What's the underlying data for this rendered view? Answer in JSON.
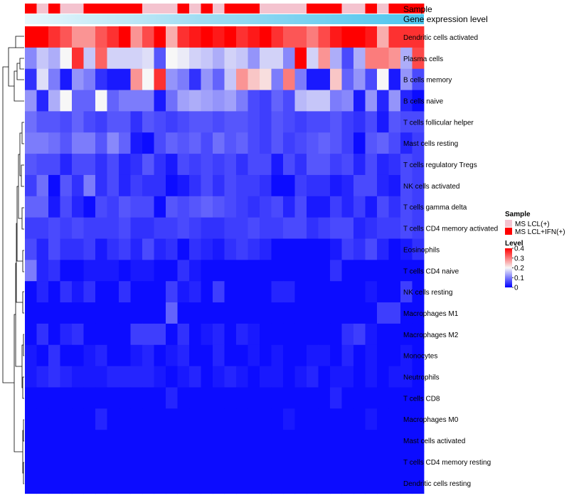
{
  "chart_data": {
    "type": "heatmap",
    "title": "",
    "annotation_labels": [
      "Sample",
      "Gene expression level"
    ],
    "sample_annotation": [
      1,
      0,
      1,
      0,
      0,
      1,
      1,
      1,
      1,
      1,
      0,
      0,
      0,
      1,
      0,
      1,
      0,
      1,
      1,
      1,
      0,
      0,
      0,
      0,
      1,
      1,
      1,
      0,
      0,
      1,
      0,
      1,
      1,
      1
    ],
    "sample_legend": {
      "title": "Sample",
      "entries": [
        {
          "name": "MS LCL(+)",
          "color": "#f4c3cf"
        },
        {
          "name": "MS LCL+IFN(+)",
          "color": "#ff0000"
        }
      ]
    },
    "level_legend": {
      "title": "Level",
      "ticks": [
        "0.4",
        "0.3",
        "0.2",
        "0.1",
        "0"
      ],
      "range": [
        0,
        0.4
      ]
    },
    "color_scale": {
      "low": "#0000ff",
      "mid": "#f7f7f7",
      "high": "#ff0000",
      "min": 0,
      "mid_value": 0.2,
      "max": 0.4
    },
    "rows": [
      "Dendritic cells activated",
      "Plasma cells",
      "B cells memory",
      "B cells naive",
      "T cells follicular helper",
      "Mast cells resting",
      "T cells regulatory  Tregs",
      "NK cells activated",
      "T cells gamma delta",
      "T cells CD4 memory activated",
      "Eosinophils",
      "T cells CD4 naive",
      "NK cells resting",
      "Macrophages M1",
      "Macrophages M2",
      "Monocytes",
      "Neutrophils",
      "T cells CD8",
      "Macrophages M0",
      "Mast cells activated",
      "T cells CD4 memory resting",
      "Dendritic cells resting"
    ],
    "values": [
      [
        0.4,
        0.4,
        0.36,
        0.33,
        0.28,
        0.28,
        0.33,
        0.36,
        0.4,
        0.28,
        0.34,
        0.4,
        0.26,
        0.36,
        0.38,
        0.4,
        0.38,
        0.4,
        0.36,
        0.38,
        0.4,
        0.36,
        0.33,
        0.33,
        0.3,
        0.34,
        0.38,
        0.4,
        0.4,
        0.38,
        0.26,
        0.36,
        0.36,
        0.36
      ],
      [
        0.11,
        0.16,
        0.14,
        0.2,
        0.36,
        0.16,
        0.32,
        0.17,
        0.17,
        0.17,
        0.18,
        0.07,
        0.2,
        0.19,
        0.17,
        0.16,
        0.14,
        0.17,
        0.16,
        0.12,
        0.17,
        0.17,
        0.11,
        0.4,
        0.17,
        0.28,
        0.14,
        0.06,
        0.14,
        0.3,
        0.3,
        0.28,
        0.14,
        0.34
      ],
      [
        0.04,
        0.18,
        0.1,
        0.02,
        0.12,
        0.1,
        0.04,
        0.02,
        0.02,
        0.28,
        0.2,
        0.36,
        0.12,
        0.1,
        0.04,
        0.12,
        0.08,
        0.16,
        0.28,
        0.24,
        0.22,
        0.1,
        0.3,
        0.1,
        0.02,
        0.02,
        0.24,
        0.08,
        0.12,
        0.06,
        0.2,
        0.02,
        0.12,
        0.06
      ],
      [
        0.12,
        0.03,
        0.14,
        0.2,
        0.08,
        0.08,
        0.2,
        0.08,
        0.1,
        0.1,
        0.1,
        0.02,
        0.09,
        0.13,
        0.14,
        0.13,
        0.12,
        0.13,
        0.1,
        0.06,
        0.05,
        0.08,
        0.06,
        0.15,
        0.16,
        0.16,
        0.1,
        0.11,
        0.02,
        0.12,
        0.03,
        0.12,
        0.03,
        0.01
      ],
      [
        0.09,
        0.07,
        0.07,
        0.06,
        0.08,
        0.06,
        0.05,
        0.07,
        0.07,
        0.04,
        0.07,
        0.06,
        0.05,
        0.06,
        0.07,
        0.07,
        0.06,
        0.07,
        0.07,
        0.06,
        0.05,
        0.07,
        0.06,
        0.05,
        0.06,
        0.06,
        0.07,
        0.05,
        0.04,
        0.06,
        0.02,
        0.07,
        0.06,
        0.06
      ],
      [
        0.1,
        0.1,
        0.09,
        0.07,
        0.1,
        0.1,
        0.07,
        0.11,
        0.08,
        0.02,
        0.01,
        0.06,
        0.08,
        0.07,
        0.08,
        0.06,
        0.09,
        0.07,
        0.08,
        0.06,
        0.05,
        0.07,
        0.05,
        0.06,
        0.07,
        0.08,
        0.07,
        0.05,
        0.01,
        0.07,
        0.08,
        0.06,
        0.03,
        0.05
      ],
      [
        0.07,
        0.06,
        0.06,
        0.03,
        0.06,
        0.06,
        0.04,
        0.06,
        0.03,
        0.04,
        0.07,
        0.04,
        0.02,
        0.06,
        0.05,
        0.06,
        0.05,
        0.06,
        0.04,
        0.06,
        0.06,
        0.02,
        0.06,
        0.04,
        0.07,
        0.07,
        0.05,
        0.06,
        0.03,
        0.06,
        0.03,
        0.04,
        0.06,
        0.05
      ],
      [
        0.05,
        0.09,
        0.01,
        0.07,
        0.04,
        0.1,
        0.04,
        0.06,
        0.03,
        0.05,
        0.04,
        0.04,
        0.01,
        0.02,
        0.04,
        0.06,
        0.04,
        0.06,
        0.05,
        0.05,
        0.04,
        0.01,
        0.01,
        0.05,
        0.04,
        0.04,
        0.02,
        0.03,
        0.06,
        0.06,
        0.03,
        0.02,
        0.06,
        0.05
      ],
      [
        0.08,
        0.08,
        0.02,
        0.06,
        0.03,
        0.01,
        0.06,
        0.05,
        0.07,
        0.06,
        0.06,
        0.01,
        0.07,
        0.06,
        0.07,
        0.08,
        0.07,
        0.06,
        0.05,
        0.04,
        0.05,
        0.06,
        0.03,
        0.06,
        0.02,
        0.02,
        0.05,
        0.03,
        0.05,
        0.02,
        0.06,
        0.04,
        0.06,
        0.05
      ],
      [
        0.05,
        0.05,
        0.06,
        0.05,
        0.06,
        0.05,
        0.05,
        0.05,
        0.06,
        0.04,
        0.04,
        0.05,
        0.05,
        0.06,
        0.05,
        0.04,
        0.04,
        0.05,
        0.05,
        0.06,
        0.05,
        0.05,
        0.06,
        0.06,
        0.04,
        0.05,
        0.06,
        0.06,
        0.03,
        0.04,
        0.05,
        0.05,
        0.06,
        0.05
      ],
      [
        0.06,
        0.03,
        0.06,
        0.04,
        0.04,
        0.05,
        0.02,
        0.04,
        0.05,
        0.03,
        0.06,
        0.03,
        0.04,
        0.01,
        0.04,
        0.03,
        0.02,
        0.04,
        0.05,
        0.04,
        0.03,
        0.01,
        0.01,
        0.01,
        0.01,
        0.01,
        0.02,
        0.05,
        0.04,
        0.06,
        0.03,
        0.01,
        0.02,
        0.04
      ],
      [
        0.1,
        0.03,
        0.04,
        0.01,
        0.01,
        0.02,
        0.02,
        0.02,
        0.01,
        0.02,
        0.02,
        0.01,
        0.01,
        0.04,
        0.02,
        0.01,
        0.01,
        0.01,
        0.01,
        0.01,
        0.01,
        0.01,
        0.01,
        0.01,
        0.01,
        0.01,
        0.04,
        0.01,
        0.01,
        0.01,
        0.01,
        0.01,
        0.01,
        0.01
      ],
      [
        0.01,
        0.03,
        0.01,
        0.04,
        0.02,
        0.04,
        0.01,
        0.01,
        0.04,
        0.01,
        0.01,
        0.01,
        0.05,
        0.02,
        0.03,
        0.01,
        0.05,
        0.01,
        0.01,
        0.01,
        0.01,
        0.03,
        0.03,
        0.01,
        0.01,
        0.01,
        0.01,
        0.01,
        0.01,
        0.02,
        0.01,
        0.01,
        0.05,
        0.01
      ],
      [
        0.01,
        0.01,
        0.01,
        0.01,
        0.01,
        0.01,
        0.01,
        0.01,
        0.01,
        0.01,
        0.01,
        0.01,
        0.08,
        0.01,
        0.01,
        0.01,
        0.01,
        0.01,
        0.01,
        0.01,
        0.01,
        0.01,
        0.01,
        0.01,
        0.01,
        0.01,
        0.01,
        0.01,
        0.01,
        0.01,
        0.05,
        0.05,
        0.01,
        0.01
      ],
      [
        0.01,
        0.04,
        0.01,
        0.03,
        0.04,
        0.01,
        0.01,
        0.01,
        0.01,
        0.05,
        0.05,
        0.05,
        0.01,
        0.04,
        0.01,
        0.02,
        0.03,
        0.01,
        0.03,
        0.02,
        0.01,
        0.01,
        0.01,
        0.01,
        0.01,
        0.01,
        0.01,
        0.04,
        0.05,
        0.02,
        0.01,
        0.01,
        0.01,
        0.01
      ],
      [
        0.02,
        0.01,
        0.04,
        0.01,
        0.01,
        0.02,
        0.03,
        0.01,
        0.01,
        0.02,
        0.03,
        0.01,
        0.02,
        0.03,
        0.01,
        0.01,
        0.03,
        0.01,
        0.01,
        0.02,
        0.01,
        0.02,
        0.01,
        0.01,
        0.02,
        0.02,
        0.01,
        0.03,
        0.01,
        0.02,
        0.01,
        0.01,
        0.02,
        0.01
      ],
      [
        0.02,
        0.03,
        0.04,
        0.03,
        0.02,
        0.02,
        0.02,
        0.03,
        0.03,
        0.03,
        0.03,
        0.02,
        0.01,
        0.02,
        0.03,
        0.01,
        0.02,
        0.03,
        0.02,
        0.01,
        0.02,
        0.02,
        0.01,
        0.02,
        0.03,
        0.01,
        0.02,
        0.02,
        0.01,
        0.02,
        0.01,
        0.02,
        0.02,
        0.01
      ],
      [
        0.01,
        0.01,
        0.01,
        0.01,
        0.01,
        0.01,
        0.01,
        0.01,
        0.01,
        0.01,
        0.01,
        0.01,
        0.03,
        0.01,
        0.01,
        0.01,
        0.01,
        0.01,
        0.01,
        0.01,
        0.01,
        0.01,
        0.01,
        0.01,
        0.01,
        0.01,
        0.03,
        0.01,
        0.01,
        0.01,
        0.01,
        0.01,
        0.01,
        0.01
      ],
      [
        0.01,
        0.01,
        0.01,
        0.01,
        0.01,
        0.01,
        0.03,
        0.01,
        0.01,
        0.01,
        0.01,
        0.01,
        0.01,
        0.01,
        0.01,
        0.01,
        0.01,
        0.01,
        0.01,
        0.01,
        0.01,
        0.01,
        0.02,
        0.01,
        0.01,
        0.01,
        0.01,
        0.01,
        0.01,
        0.02,
        0.01,
        0.01,
        0.01,
        0.01
      ],
      [
        0.01,
        0.01,
        0.01,
        0.01,
        0.01,
        0.01,
        0.01,
        0.01,
        0.01,
        0.01,
        0.01,
        0.01,
        0.01,
        0.01,
        0.01,
        0.01,
        0.01,
        0.01,
        0.01,
        0.01,
        0.01,
        0.01,
        0.01,
        0.01,
        0.01,
        0.01,
        0.01,
        0.01,
        0.01,
        0.01,
        0.01,
        0.01,
        0.01,
        0.01
      ],
      [
        0.01,
        0.01,
        0.01,
        0.01,
        0.01,
        0.01,
        0.01,
        0.01,
        0.01,
        0.01,
        0.01,
        0.01,
        0.01,
        0.01,
        0.01,
        0.01,
        0.01,
        0.01,
        0.01,
        0.01,
        0.01,
        0.01,
        0.01,
        0.01,
        0.01,
        0.01,
        0.01,
        0.01,
        0.01,
        0.01,
        0.01,
        0.01,
        0.01,
        0.01
      ],
      [
        0.01,
        0.01,
        0.01,
        0.01,
        0.01,
        0.01,
        0.01,
        0.01,
        0.01,
        0.01,
        0.01,
        0.01,
        0.01,
        0.01,
        0.01,
        0.01,
        0.01,
        0.01,
        0.01,
        0.01,
        0.01,
        0.01,
        0.01,
        0.01,
        0.01,
        0.01,
        0.01,
        0.01,
        0.01,
        0.01,
        0.01,
        0.01,
        0.01,
        0.01
      ]
    ]
  }
}
